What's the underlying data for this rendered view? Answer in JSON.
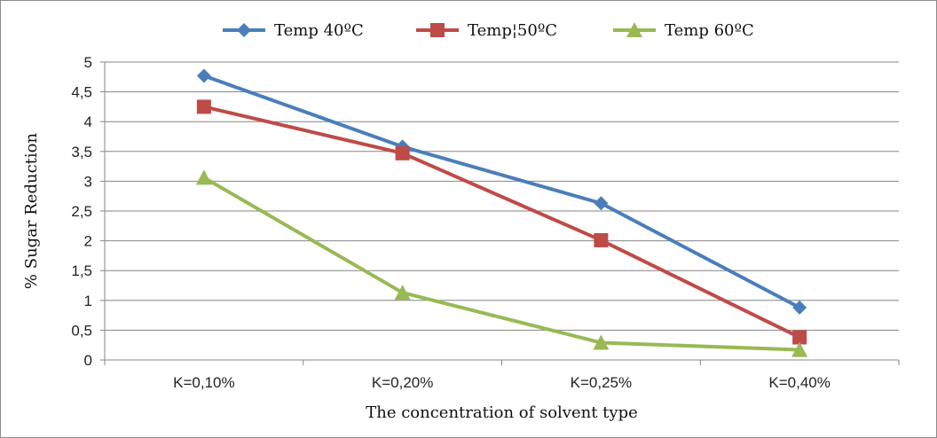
{
  "chart_data": {
    "type": "line",
    "categories": [
      "K=0,10%",
      "K=0,20%",
      "K=0,25%",
      "K=0,40%"
    ],
    "series": [
      {
        "name": "Temp  40ºC",
        "values": [
          4.77,
          3.58,
          2.63,
          0.88
        ],
        "color": "#4a7ebb",
        "marker": "diamond"
      },
      {
        "name": "Temp¦50ºC",
        "values": [
          4.25,
          3.47,
          2.01,
          0.38
        ],
        "color": "#be4b48",
        "marker": "square"
      },
      {
        "name": "Temp 60ºC",
        "values": [
          3.06,
          1.13,
          0.29,
          0.17
        ],
        "color": "#98b954",
        "marker": "triangle"
      }
    ],
    "xlabel": "The concentration of solvent type",
    "ylabel": "% Sugar Reduction",
    "ylim": [
      0,
      5
    ],
    "yticks": [
      "0",
      "0,5",
      "1",
      "1,5",
      "2",
      "2,5",
      "3",
      "3,5",
      "4",
      "4,5",
      "5"
    ],
    "grid": true,
    "legend_position": "top"
  }
}
